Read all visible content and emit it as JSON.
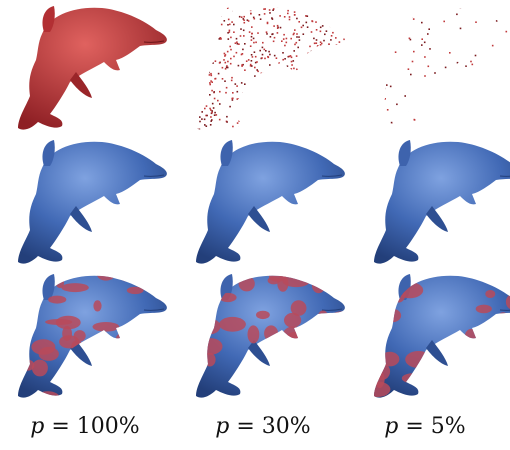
{
  "figure": {
    "columns": [
      {
        "p_var": "p",
        "p_rest": " = 100%",
        "point_density": 1.0
      },
      {
        "p_var": "p",
        "p_rest": " = 30%",
        "point_density": 0.3
      },
      {
        "p_var": "p",
        "p_rest": " = 5%",
        "point_density": 0.05
      }
    ],
    "rows": [
      {
        "kind": "input-point-cloud",
        "color": "#c0393b"
      },
      {
        "kind": "reconstructed-surface",
        "color": "#4169b5"
      },
      {
        "kind": "overlay-comparison",
        "color_a": "#4169b5",
        "color_b": "#b84a5a"
      }
    ]
  }
}
